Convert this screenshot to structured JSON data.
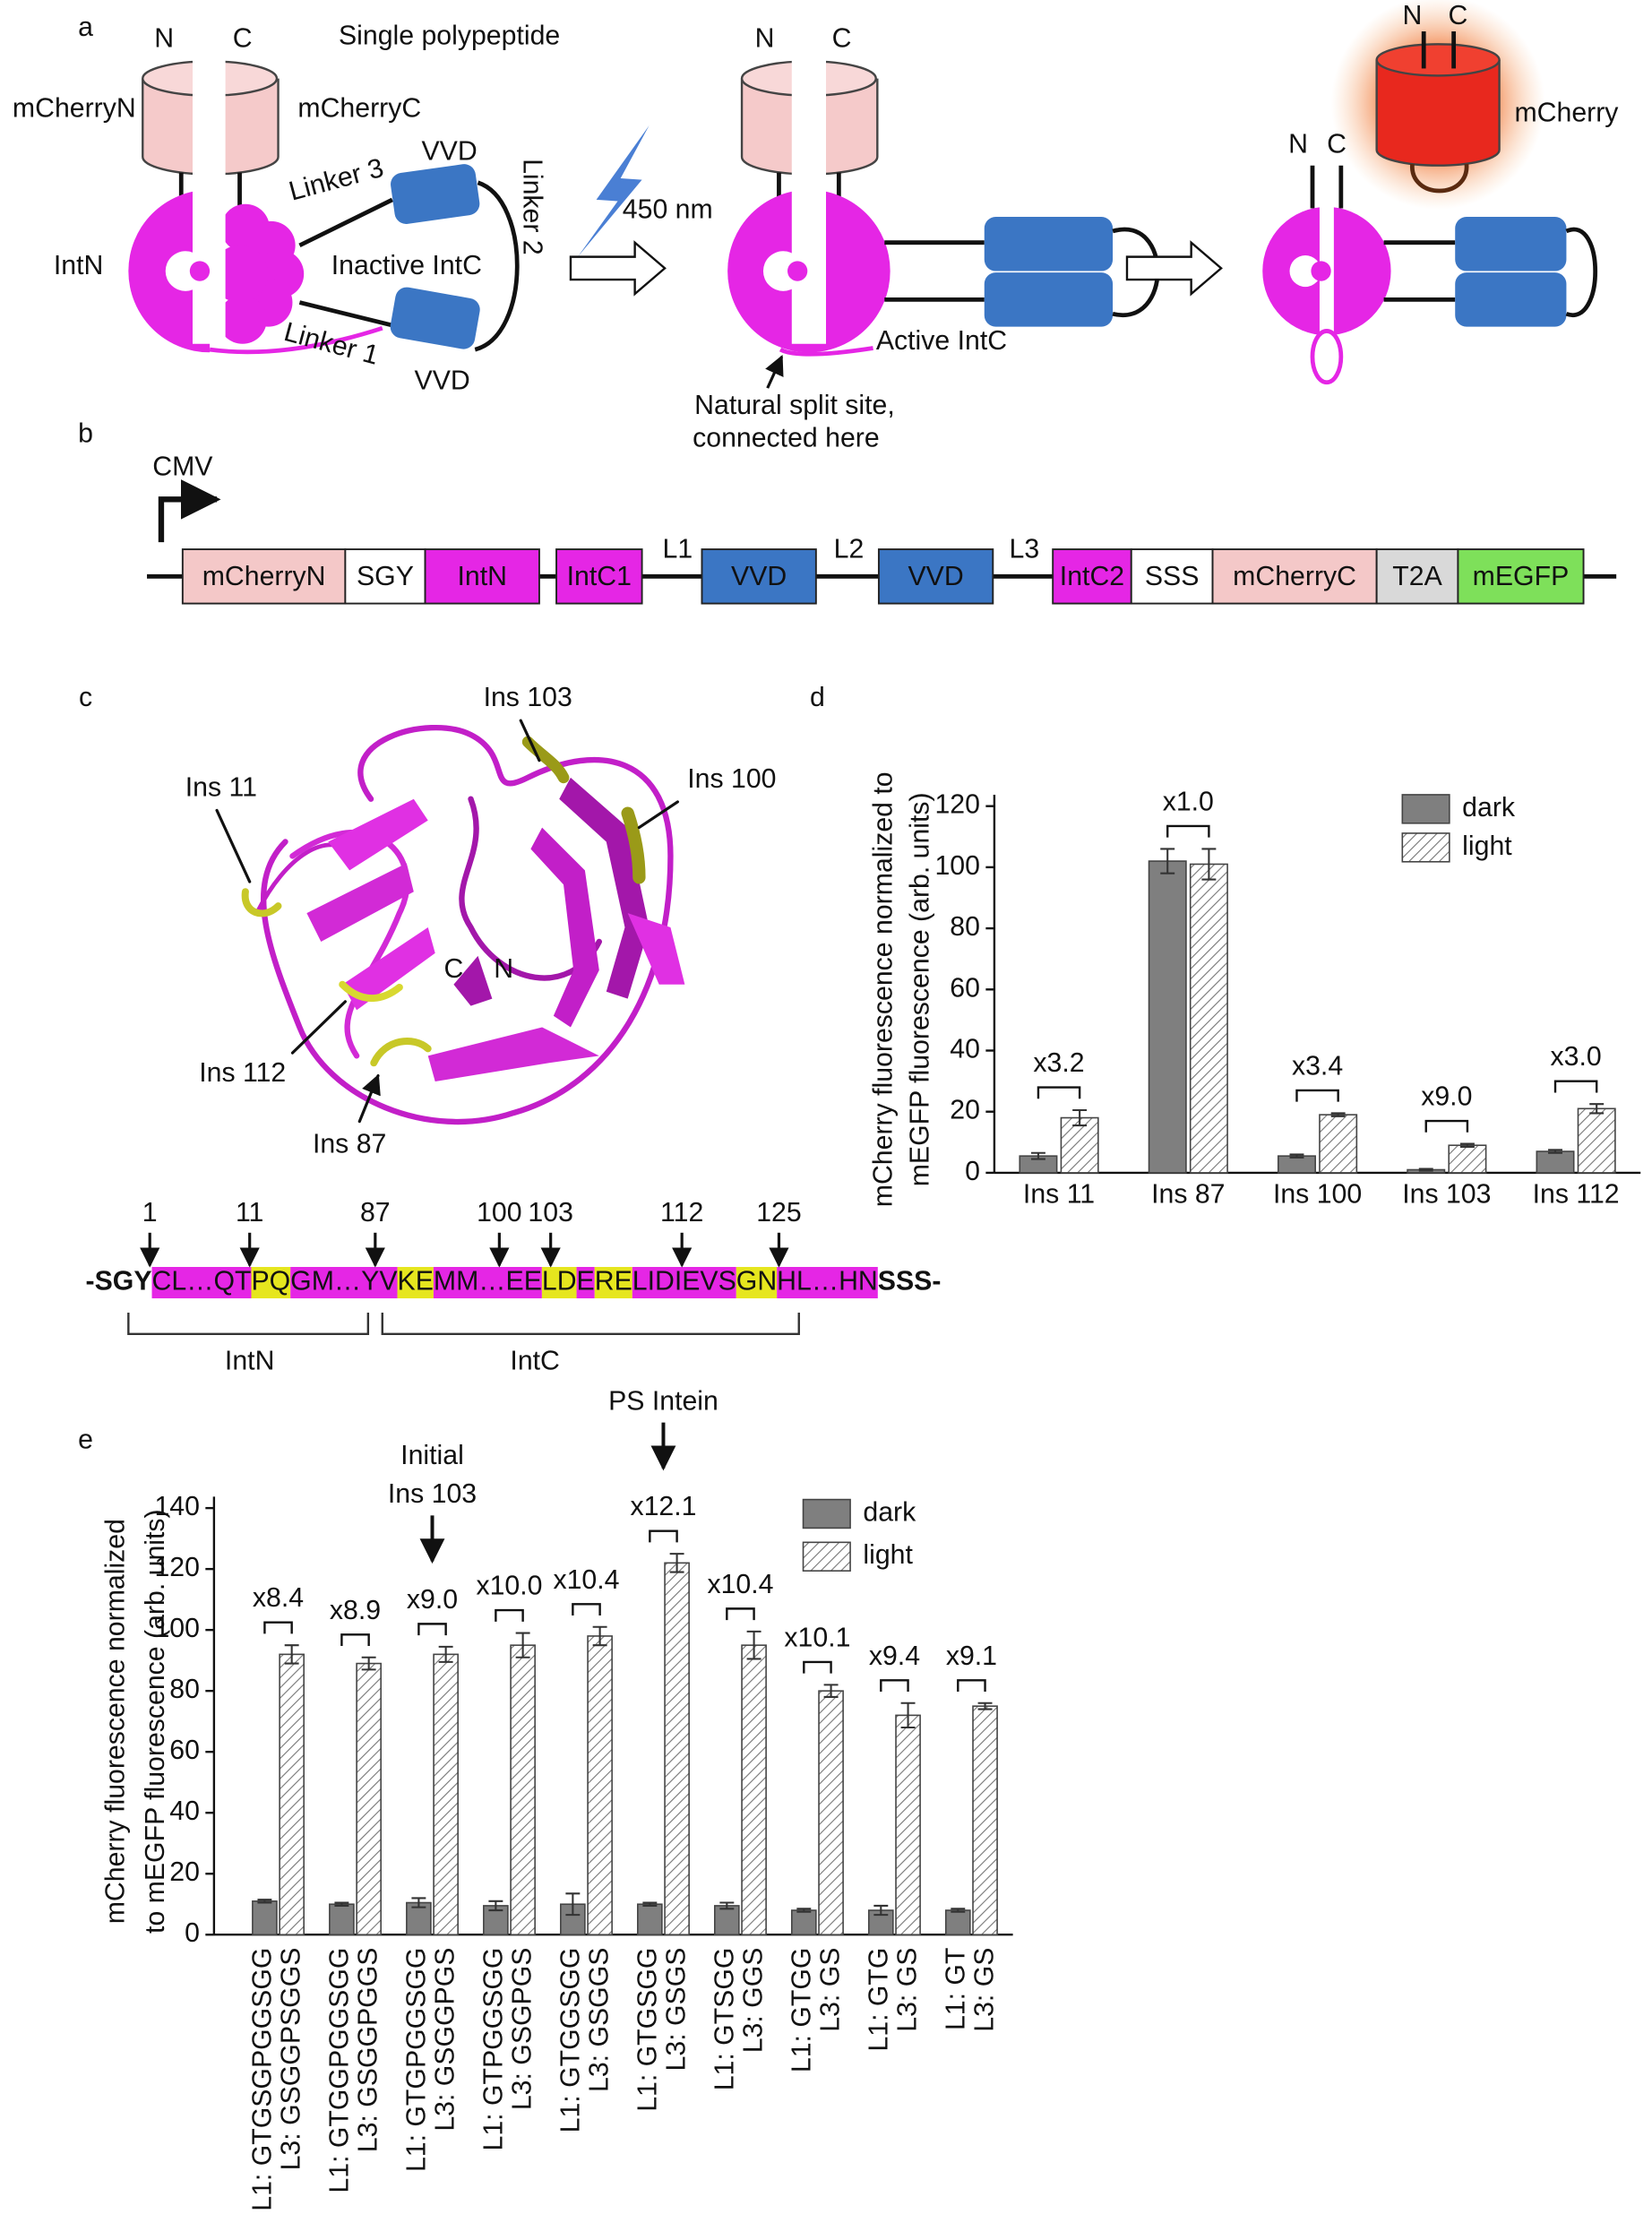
{
  "panel_labels": [
    "a",
    "b",
    "c",
    "d",
    "e"
  ],
  "diagram_a": {
    "stage1": {
      "n": "N",
      "c": "C",
      "title": "Single polypeptide",
      "mcherry_n": "mCherryN",
      "mcherry_c": "mCherryC",
      "linker3": "Linker 3",
      "linker2": "Linker 2",
      "linker1": "Linker 1",
      "vvd_top": "VVD",
      "vvd_bottom": "VVD",
      "intn": "IntN",
      "intc": "Inactive IntC"
    },
    "light": "450 nm",
    "stage2": {
      "n": "N",
      "c": "C",
      "intc": "Active IntC",
      "split_note": [
        "Natural split site,",
        "connected here"
      ]
    },
    "stage3": {
      "n": "N",
      "c": "C",
      "product_n": "N",
      "product_c": "C",
      "product": "mCherry"
    }
  },
  "diagram_b": {
    "promoter": "CMV",
    "elements": [
      {
        "label": "mCherryN",
        "color": "#f4c8c8"
      },
      {
        "label": "SGY",
        "color": "#ffffff"
      },
      {
        "label": "IntN",
        "color": "#e526e5"
      },
      {
        "label": "IntC1",
        "color": "#e526e5"
      },
      {
        "label": "VVD",
        "color": "#3b76c4"
      },
      {
        "label": "VVD",
        "color": "#3b76c4"
      },
      {
        "label": "IntC2",
        "color": "#e526e5"
      },
      {
        "label": "SSS",
        "color": "#ffffff"
      },
      {
        "label": "mCherryC",
        "color": "#f4c8c8"
      },
      {
        "label": "T2A",
        "color": "#d9d9d9"
      },
      {
        "label": "mEGFP",
        "color": "#7ee05a"
      }
    ],
    "linkers": [
      "L1",
      "L2",
      "L3"
    ]
  },
  "diagram_c": {
    "insertions": [
      "Ins 103",
      "Ins 100",
      "Ins 11",
      "Ins 112",
      "Ins 87"
    ],
    "termini": [
      "C",
      "N"
    ],
    "site_labels": [
      "1",
      "11",
      "87",
      "100",
      "103",
      "112",
      "125"
    ],
    "sequence": [
      {
        "text": "-SGY",
        "highlight": null
      },
      {
        "text": "CL…QT",
        "highlight": "#e526e5"
      },
      {
        "text": "PQ",
        "highlight": "#e6e61e"
      },
      {
        "text": "GM…YV",
        "highlight": "#e526e5"
      },
      {
        "text": "KE",
        "highlight": "#e6e61e"
      },
      {
        "text": "MM…EE",
        "highlight": "#e526e5"
      },
      {
        "text": "LD",
        "highlight": "#e6e61e"
      },
      {
        "text": "E",
        "highlight": "#e526e5"
      },
      {
        "text": "RE",
        "highlight": "#e6e61e"
      },
      {
        "text": "LIDIEVS",
        "highlight": "#e526e5"
      },
      {
        "text": "GN",
        "highlight": "#e6e61e"
      },
      {
        "text": "HL…HN",
        "highlight": "#e526e5"
      },
      {
        "text": "SSS-",
        "highlight": null
      }
    ],
    "domains": [
      "IntN",
      "IntC"
    ]
  },
  "chart_data": [
    {
      "type": "bar",
      "categories": [
        "Ins 11",
        "Ins 87",
        "Ins 100",
        "Ins 103",
        "Ins 112"
      ],
      "series": [
        {
          "name": "dark",
          "color": "#7f7f7f",
          "pattern": "solid",
          "values": [
            5.5,
            102,
            5.5,
            1,
            7
          ],
          "errors": [
            1,
            4,
            0.5,
            0.3,
            0.5
          ]
        },
        {
          "name": "light",
          "color": "#ffffff",
          "pattern": "hatched",
          "values": [
            18,
            101,
            19,
            9,
            21
          ],
          "errors": [
            2.5,
            5,
            0.5,
            0.5,
            1.5
          ]
        }
      ],
      "annotations": [
        "x3.2",
        "x1.0",
        "x3.4",
        "x9.0",
        "x3.0"
      ],
      "ylabel": [
        "mCherry fluorescence normalized to",
        "mEGFP fluorescence (arb. units)"
      ],
      "ylim": [
        0,
        120
      ],
      "yticks": [
        0,
        20,
        40,
        60,
        80,
        100,
        120
      ],
      "legend": "top right"
    },
    {
      "type": "bar",
      "categories": [
        [
          "L1: GTGSGPGGSGG",
          "L3: GSGGPSGGS"
        ],
        [
          "L1: GTGGPGGSGG",
          "L3: GSGGPGGS"
        ],
        [
          "L1: GTGPGGSGG",
          "L3: GSGGPGS"
        ],
        [
          "L1: GTPGGSGG",
          "L3: GSGPGS"
        ],
        [
          "L1: GTGGSGG",
          "L3: GSGGS"
        ],
        [
          "L1: GTGSGG",
          "L3: GSGS"
        ],
        [
          "L1: GTSGG",
          "L3: GGS"
        ],
        [
          "L1: GTGG",
          "L3: GS"
        ],
        [
          "L1: GTG",
          "L3: GS"
        ],
        [
          "L1: GT",
          "L3: GS"
        ]
      ],
      "series": [
        {
          "name": "dark",
          "color": "#7f7f7f",
          "pattern": "solid",
          "values": [
            11,
            10,
            10.5,
            9.5,
            10,
            10,
            9.5,
            8,
            8,
            8
          ],
          "errors": [
            0.5,
            0.5,
            1.5,
            1.5,
            3.5,
            0.5,
            1,
            0.5,
            1.5,
            0.5
          ]
        },
        {
          "name": "light",
          "color": "#ffffff",
          "pattern": "hatched",
          "values": [
            92,
            89,
            92,
            95,
            98,
            122,
            95,
            80,
            72,
            75
          ],
          "errors": [
            3,
            2,
            2.5,
            4,
            3,
            3,
            4.5,
            2,
            4,
            1
          ]
        }
      ],
      "annotations": [
        "x8.4",
        "x8.9",
        "x9.0",
        "x10.0",
        "x10.4",
        "x12.1",
        "x10.4",
        "x10.1",
        "x9.4",
        "x9.1"
      ],
      "callouts": [
        {
          "text": [
            "Initial",
            "Ins 103"
          ],
          "category": 2
        },
        {
          "text": [
            "PS Intein"
          ],
          "category": 5
        }
      ],
      "ylabel": [
        "mCherry fluorescence normalized",
        "to mEGFP fluorescence (arb. units)"
      ],
      "ylim": [
        0,
        140
      ],
      "yticks": [
        0,
        20,
        40,
        60,
        80,
        100,
        120,
        140
      ],
      "legend": "top right"
    }
  ]
}
